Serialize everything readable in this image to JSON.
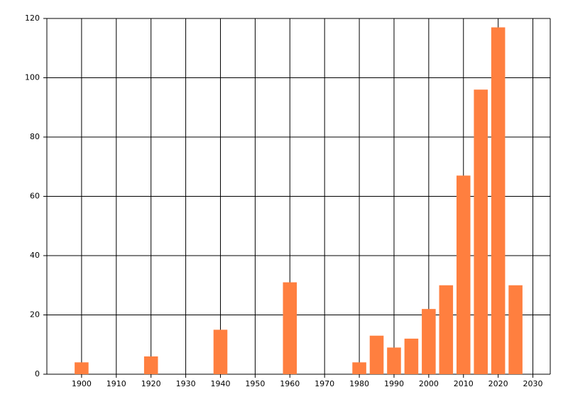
{
  "chart_data": {
    "type": "bar",
    "x": [
      1900,
      1920,
      1940,
      1960,
      1980,
      1985,
      1990,
      1995,
      2000,
      2005,
      2010,
      2015,
      2020,
      2025
    ],
    "values": [
      4,
      6,
      15,
      31,
      4,
      13,
      9,
      12,
      22,
      30,
      67,
      96,
      117,
      30
    ],
    "color": "#ff7f3f",
    "xlim": [
      1890,
      2035
    ],
    "xticks": [
      1900,
      1910,
      1920,
      1930,
      1940,
      1950,
      1960,
      1970,
      1980,
      1990,
      2000,
      2010,
      2020,
      2030
    ],
    "ylim": [
      0,
      120
    ],
    "yticks": [
      0,
      20,
      40,
      60,
      80,
      100,
      120
    ],
    "grid": true
  }
}
